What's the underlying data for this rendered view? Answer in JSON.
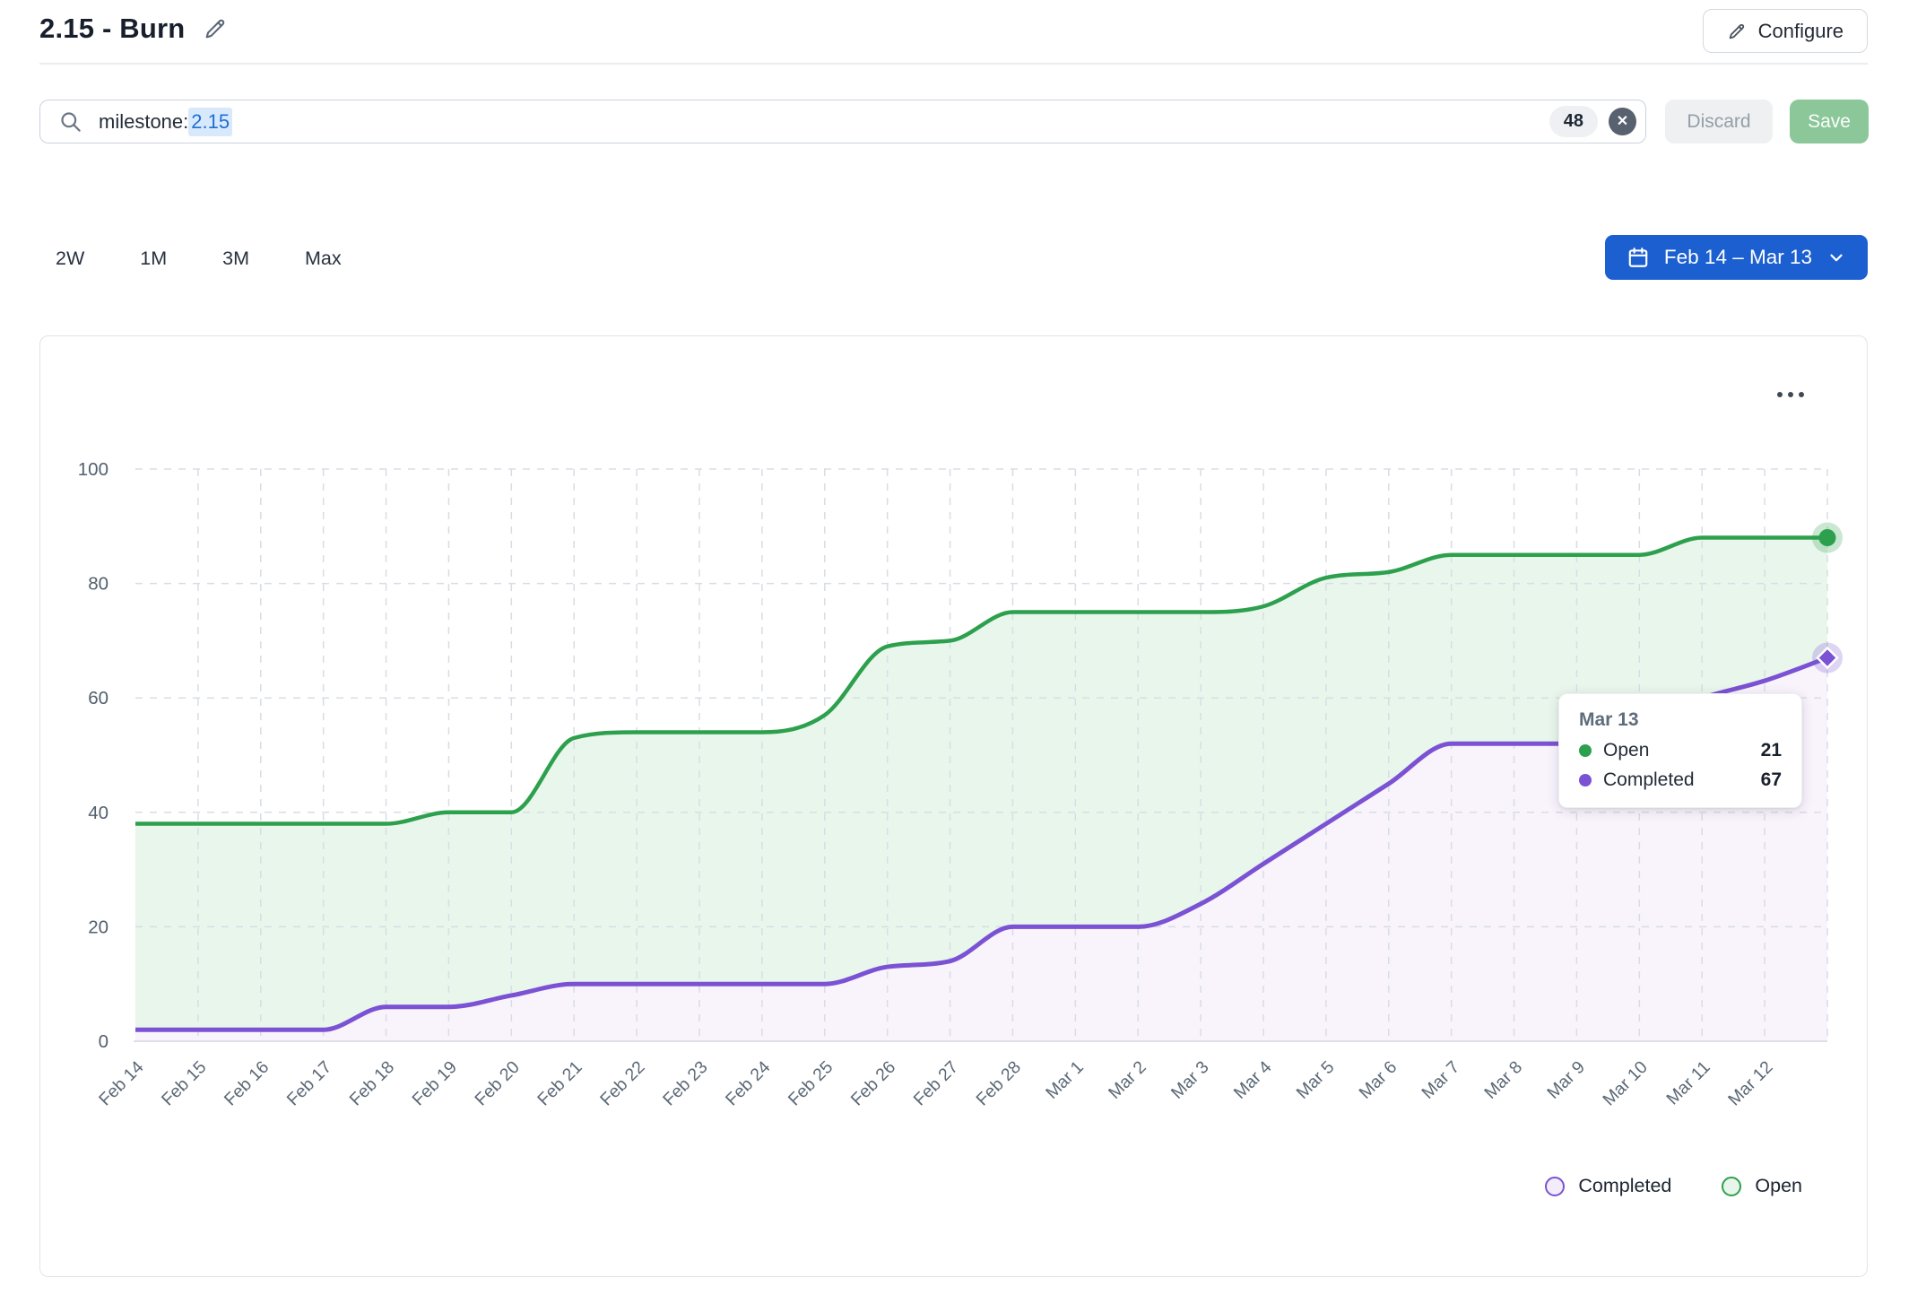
{
  "header": {
    "title": "2.15 - Burn",
    "configure_label": "Configure"
  },
  "filter_bar": {
    "query_prefix": "milestone:",
    "query_value": "2.15",
    "result_count": "48",
    "discard_label": "Discard",
    "save_label": "Save"
  },
  "range_controls": {
    "presets": [
      "2W",
      "1M",
      "3M",
      "Max"
    ],
    "date_range_label": "Feb 14 – Mar 13"
  },
  "chart_card": {
    "legend": [
      {
        "label": "Completed",
        "color": "#7a52d3",
        "fill": "#f3ecfb"
      },
      {
        "label": "Open",
        "color": "#2da04d",
        "fill": "#e7f5ea"
      }
    ]
  },
  "tooltip": {
    "title": "Mar 13",
    "rows": [
      {
        "label": "Open",
        "value": "21",
        "color": "#2da04d"
      },
      {
        "label": "Completed",
        "value": "67",
        "color": "#7a52d3"
      }
    ]
  },
  "chart_data": {
    "type": "area",
    "stacked": true,
    "title": "",
    "categories": [
      "Feb 14",
      "Feb 15",
      "Feb 16",
      "Feb 17",
      "Feb 18",
      "Feb 19",
      "Feb 20",
      "Feb 21",
      "Feb 22",
      "Feb 23",
      "Feb 24",
      "Feb 25",
      "Feb 26",
      "Feb 27",
      "Feb 28",
      "Mar 1",
      "Mar 2",
      "Mar 3",
      "Mar 4",
      "Mar 5",
      "Mar 6",
      "Mar 7",
      "Mar 8",
      "Mar 9",
      "Mar 10",
      "Mar 11",
      "Mar 12",
      "Mar 13"
    ],
    "last_x_label_hidden": true,
    "series": [
      {
        "name": "Completed",
        "color": "#7a52d3",
        "fill": "#f9f3fc",
        "marker": "diamond",
        "values": [
          2,
          2,
          2,
          2,
          6,
          6,
          8,
          10,
          10,
          10,
          10,
          10,
          13,
          14,
          20,
          20,
          20,
          24,
          31,
          38,
          45,
          52,
          52,
          52,
          56,
          60,
          63,
          67
        ]
      },
      {
        "name": "Open",
        "color": "#2da04d",
        "fill": "#e9f6ec",
        "marker": "circle",
        "values": [
          36,
          36,
          36,
          36,
          32,
          34,
          32,
          43,
          44,
          44,
          44,
          47,
          56,
          56,
          55,
          55,
          55,
          51,
          45,
          43,
          37,
          33,
          33,
          33,
          29,
          28,
          25,
          21
        ]
      }
    ],
    "ylim": [
      0,
      100
    ],
    "yticks": [
      0,
      20,
      40,
      60,
      80,
      100
    ],
    "grid": "dashed",
    "legend_position": "bottom-right",
    "hover_point": {
      "date": "Mar 13",
      "open": 21,
      "completed": 67,
      "total": 88
    }
  }
}
